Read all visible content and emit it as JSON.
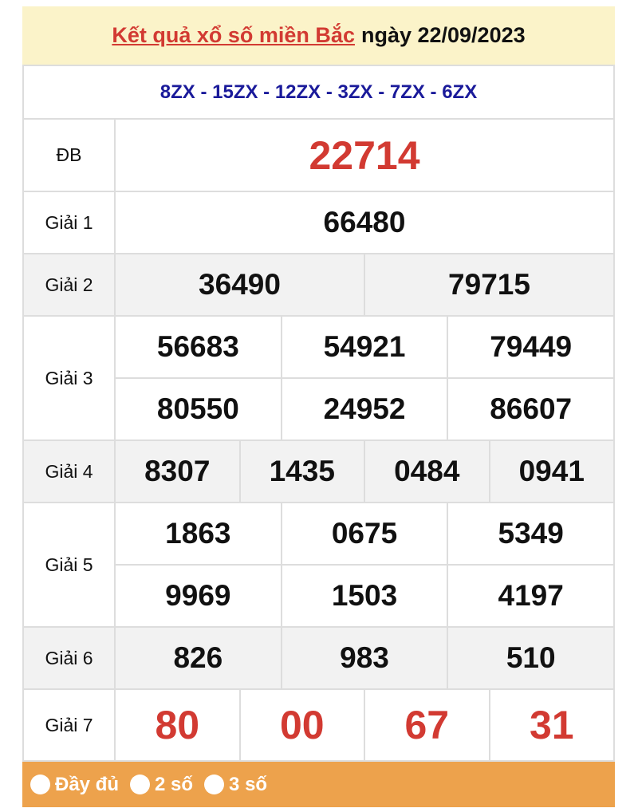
{
  "header": {
    "title_link": "Kết quả xổ số miền Bắc",
    "date_text": "ngày 22/09/2023"
  },
  "codes": "8ZX - 15ZX - 12ZX - 3ZX - 7ZX - 6ZX",
  "prizes": [
    {
      "label": "ĐB",
      "lines": [
        [
          "22714"
        ]
      ]
    },
    {
      "label": "Giải 1",
      "lines": [
        [
          "66480"
        ]
      ]
    },
    {
      "label": "Giải 2",
      "lines": [
        [
          "36490",
          "79715"
        ]
      ]
    },
    {
      "label": "Giải 3",
      "lines": [
        [
          "56683",
          "54921",
          "79449"
        ],
        [
          "80550",
          "24952",
          "86607"
        ]
      ]
    },
    {
      "label": "Giải 4",
      "lines": [
        [
          "8307",
          "1435",
          "0484",
          "0941"
        ]
      ]
    },
    {
      "label": "Giải 5",
      "lines": [
        [
          "1863",
          "0675",
          "5349"
        ],
        [
          "9969",
          "1503",
          "4197"
        ]
      ]
    },
    {
      "label": "Giải 6",
      "lines": [
        [
          "826",
          "983",
          "510"
        ]
      ]
    },
    {
      "label": "Giải 7",
      "lines": [
        [
          "80",
          "00",
          "67",
          "31"
        ]
      ]
    }
  ],
  "options": [
    "Đầy đủ",
    "2 số",
    "3 số"
  ],
  "colors": {
    "accent_red": "#d23a32",
    "code_blue": "#1a1a9a",
    "header_bg": "#fbf3c9",
    "bar_orange": "#eda24c"
  }
}
